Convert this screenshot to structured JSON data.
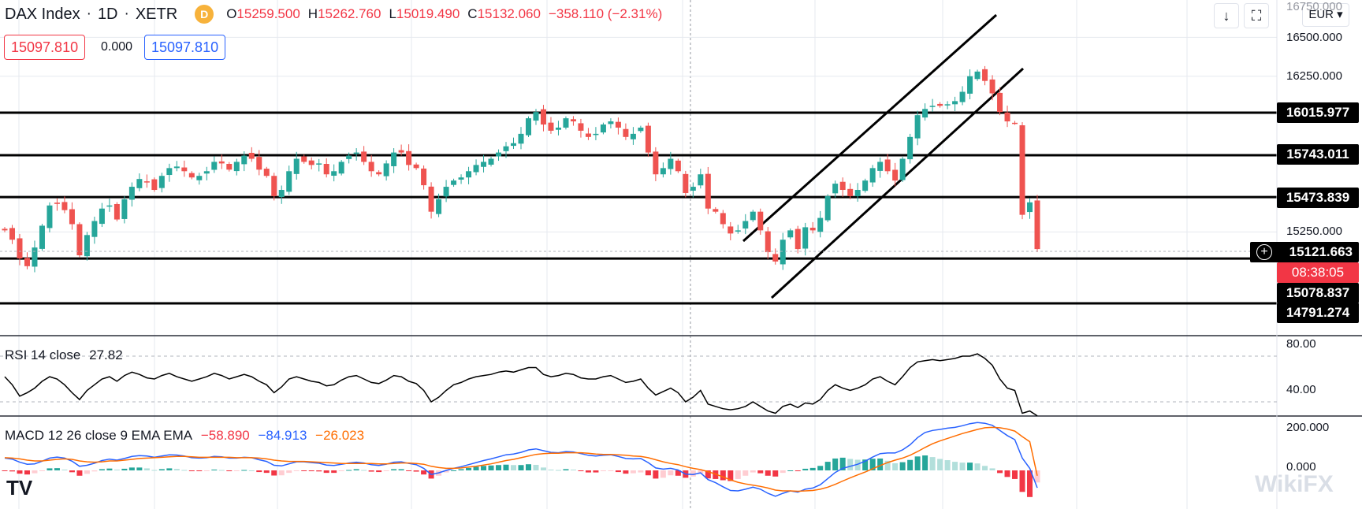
{
  "symbol": {
    "name": "DAX Index",
    "interval": "1D",
    "exchange": "XETR",
    "badge": "D",
    "open_label": "O",
    "open": "15259.500",
    "high_label": "H",
    "high": "15262.760",
    "low_label": "L",
    "low": "15019.490",
    "close_label": "C",
    "close": "15132.060",
    "change": "−358.110 (−2.31%)"
  },
  "trade": {
    "bid": "15097.810",
    "spread": "0.000",
    "ask": "15097.810"
  },
  "toolbar": {
    "download_icon": "arrow-down-icon",
    "fullscreen_icon": "fullscreen-icon",
    "currency": "EUR"
  },
  "price_axis": {
    "ticks": [
      "16750.000",
      "16500.000",
      "16250.000",
      "15250.000"
    ],
    "ticks_values": [
      16750,
      16500,
      16250,
      15250
    ],
    "level_labels": [
      "16015.977",
      "15743.011",
      "15473.839",
      "15078.837",
      "14791.274"
    ],
    "level_values": [
      16015.977,
      15743.011,
      15473.839,
      15078.837,
      14791.274
    ],
    "last_price": "15121.663",
    "last_price_value": 15121.663,
    "countdown": "08:38:05"
  },
  "rsi": {
    "title": "RSI 14 close",
    "value": "27.82",
    "ticks": [
      "80.00",
      "40.00"
    ],
    "color": "#000000"
  },
  "macd": {
    "title": "MACD 12 26 close 9 EMA EMA",
    "hist_value": "−58.890",
    "macd_value": "−84.913",
    "signal_value": "−26.023",
    "ticks": [
      "200.000",
      "0.000"
    ],
    "macd_color": "#2962ff",
    "signal_color": "#ff6d00",
    "hist_up_color": "#26a69a",
    "hist_down_color": "#f23645"
  },
  "colors": {
    "up": "#26a69a",
    "down": "#ef5350",
    "grid": "#e6e9ef",
    "levels": "#000000"
  },
  "branding": {
    "logo": "TV",
    "watermark": "WikiFX"
  },
  "chart_data": {
    "type": "candlestick",
    "instrument": "DAX Index",
    "interval": "1D",
    "horizontal_levels": [
      16015.977,
      15743.011,
      15473.839,
      15078.837,
      14791.274
    ],
    "closes": [
      15260,
      15200,
      15080,
      15030,
      15150,
      15290,
      15420,
      15430,
      15390,
      15300,
      15100,
      15230,
      15320,
      15400,
      15420,
      15330,
      15460,
      15540,
      15590,
      15570,
      15520,
      15610,
      15660,
      15670,
      15640,
      15600,
      15610,
      15640,
      15700,
      15690,
      15650,
      15700,
      15740,
      15720,
      15650,
      15610,
      15480,
      15520,
      15640,
      15720,
      15700,
      15680,
      15690,
      15620,
      15640,
      15700,
      15740,
      15760,
      15700,
      15640,
      15620,
      15690,
      15760,
      15760,
      15680,
      15660,
      15550,
      15380,
      15460,
      15540,
      15580,
      15600,
      15640,
      15680,
      15700,
      15720,
      15760,
      15800,
      15820,
      15880,
      15980,
      16020,
      15940,
      15900,
      15920,
      15980,
      15960,
      15900,
      15860,
      15880,
      15940,
      15960,
      15920,
      15860,
      15880,
      15920,
      15760,
      15620,
      15660,
      15720,
      15640,
      15500,
      15540,
      15620,
      15400,
      15380,
      15300,
      15240,
      15260,
      15320,
      15380,
      15260,
      15120,
      15060,
      15200,
      15260,
      15140,
      15280,
      15260,
      15340,
      15480,
      15560,
      15520,
      15480,
      15520,
      15580,
      15660,
      15700,
      15640,
      15580,
      15720,
      15860,
      16000,
      16040,
      16060,
      16060,
      16070,
      16090,
      16150,
      16250,
      16280,
      16220,
      16140,
      16020,
      15960,
      15950,
      15360,
      15440,
      15140
    ],
    "rsi_values": [
      62,
      55,
      45,
      48,
      52,
      58,
      62,
      60,
      55,
      48,
      42,
      50,
      55,
      60,
      62,
      58,
      63,
      66,
      64,
      61,
      60,
      63,
      65,
      62,
      60,
      58,
      60,
      62,
      65,
      63,
      60,
      62,
      64,
      62,
      58,
      55,
      48,
      53,
      60,
      62,
      60,
      58,
      57,
      54,
      55,
      59,
      62,
      63,
      60,
      57,
      56,
      59,
      63,
      62,
      58,
      56,
      50,
      40,
      44,
      50,
      55,
      57,
      60,
      62,
      63,
      64,
      66,
      67,
      66,
      68,
      70,
      70,
      64,
      62,
      63,
      65,
      64,
      61,
      60,
      60,
      62,
      63,
      60,
      57,
      58,
      60,
      52,
      46,
      49,
      52,
      48,
      40,
      44,
      50,
      38,
      36,
      34,
      33,
      34,
      36,
      40,
      36,
      32,
      30,
      36,
      38,
      35,
      39,
      38,
      42,
      50,
      55,
      52,
      50,
      52,
      55,
      60,
      62,
      58,
      55,
      62,
      70,
      75,
      76,
      77,
      76,
      77,
      78,
      80,
      80,
      82,
      78,
      72,
      60,
      52,
      50,
      30,
      32,
      27.82
    ],
    "macd_values": [
      60,
      55,
      40,
      30,
      32,
      45,
      60,
      65,
      60,
      45,
      20,
      25,
      35,
      48,
      55,
      50,
      58,
      68,
      72,
      70,
      64,
      70,
      76,
      75,
      70,
      62,
      60,
      62,
      68,
      66,
      60,
      60,
      64,
      62,
      52,
      44,
      25,
      22,
      32,
      42,
      42,
      38,
      35,
      26,
      24,
      30,
      36,
      40,
      36,
      28,
      24,
      30,
      40,
      42,
      34,
      28,
      10,
      -20,
      -12,
      0,
      10,
      18,
      28,
      38,
      48,
      56,
      66,
      76,
      80,
      88,
      100,
      105,
      96,
      88,
      86,
      92,
      90,
      82,
      74,
      70,
      74,
      76,
      68,
      58,
      56,
      58,
      38,
      12,
      6,
      10,
      2,
      -18,
      -20,
      -12,
      -45,
      -60,
      -80,
      -98,
      -100,
      -92,
      -82,
      -92,
      -112,
      -126,
      -112,
      -100,
      -106,
      -92,
      -86,
      -70,
      -40,
      -10,
      10,
      20,
      30,
      45,
      65,
      82,
      85,
      85,
      100,
      125,
      160,
      185,
      195,
      200,
      206,
      210,
      218,
      228,
      234,
      230,
      220,
      195,
      170,
      150,
      60,
      10,
      -84.913
    ],
    "signal_values": [
      62,
      60,
      56,
      50,
      46,
      46,
      50,
      54,
      56,
      54,
      46,
      42,
      40,
      42,
      46,
      46,
      50,
      54,
      58,
      60,
      62,
      64,
      66,
      68,
      68,
      66,
      64,
      64,
      64,
      64,
      64,
      62,
      62,
      62,
      60,
      56,
      50,
      46,
      44,
      44,
      44,
      42,
      40,
      38,
      36,
      34,
      34,
      34,
      34,
      34,
      32,
      32,
      34,
      36,
      36,
      34,
      30,
      20,
      14,
      10,
      10,
      12,
      16,
      20,
      26,
      32,
      40,
      48,
      54,
      62,
      70,
      78,
      82,
      84,
      84,
      86,
      86,
      86,
      84,
      80,
      78,
      78,
      76,
      74,
      70,
      68,
      62,
      52,
      42,
      34,
      28,
      18,
      10,
      4,
      -6,
      -18,
      -32,
      -46,
      -58,
      -66,
      -72,
      -78,
      -86,
      -96,
      -100,
      -100,
      -102,
      -100,
      -98,
      -92,
      -82,
      -68,
      -52,
      -36,
      -22,
      -8,
      8,
      24,
      38,
      50,
      60,
      74,
      92,
      112,
      130,
      144,
      156,
      168,
      180,
      190,
      200,
      208,
      210,
      208,
      202,
      192,
      165,
      140,
      -26.023
    ],
    "hist_values": [
      -2,
      -5,
      -16,
      -20,
      -14,
      -1,
      10,
      11,
      4,
      -9,
      -26,
      -17,
      -5,
      6,
      9,
      4,
      8,
      14,
      14,
      10,
      2,
      6,
      10,
      7,
      2,
      -4,
      -4,
      -2,
      4,
      2,
      -4,
      -2,
      2,
      0,
      -8,
      -12,
      -25,
      -24,
      -12,
      -2,
      -2,
      -4,
      -5,
      -12,
      -12,
      -4,
      2,
      6,
      2,
      -6,
      -8,
      -2,
      6,
      6,
      -2,
      -6,
      -20,
      -40,
      -26,
      -10,
      0,
      6,
      12,
      18,
      22,
      24,
      26,
      28,
      26,
      26,
      30,
      27,
      14,
      4,
      2,
      6,
      4,
      -4,
      -10,
      -10,
      -4,
      -2,
      -8,
      -16,
      -14,
      -10,
      -24,
      -40,
      -36,
      -24,
      -26,
      -36,
      -30,
      -16,
      -39,
      -42,
      -48,
      -52,
      -42,
      -26,
      -10,
      -14,
      -26,
      -30,
      -12,
      0,
      -4,
      8,
      12,
      22,
      42,
      58,
      62,
      56,
      52,
      53,
      57,
      58,
      47,
      35,
      40,
      51,
      68,
      73,
      65,
      56,
      50,
      42,
      38,
      38,
      34,
      22,
      10,
      -13,
      -32,
      -42,
      -105,
      -130,
      -58.89
    ]
  }
}
